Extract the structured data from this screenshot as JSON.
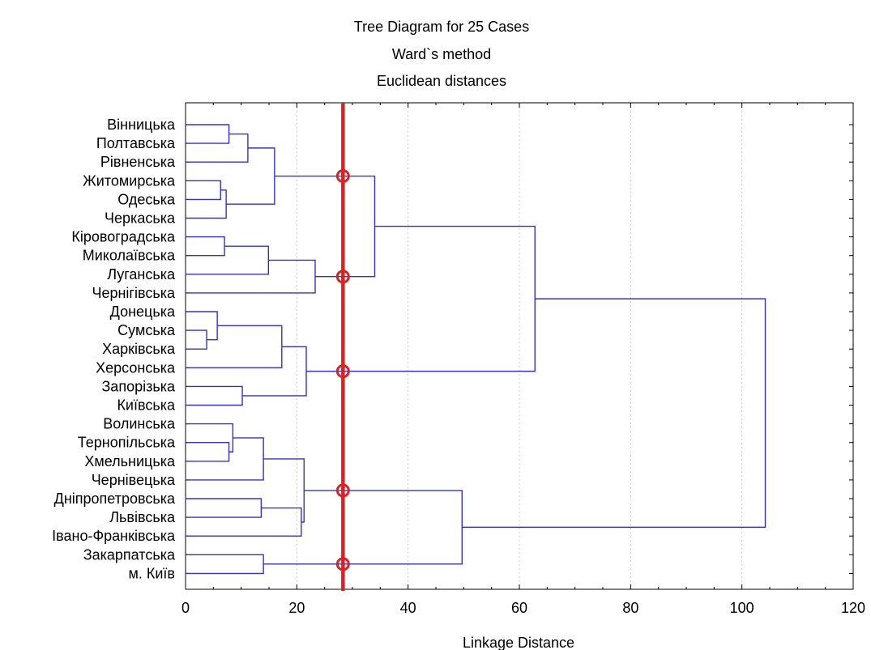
{
  "chart_data": {
    "type": "dendrogram",
    "title": [
      "Tree Diagram for 25 Cases",
      "Ward`s method",
      "Euclidean distances"
    ],
    "xlabel": "Linkage Distance",
    "xlim": [
      0,
      120
    ],
    "xticks": [
      0,
      20,
      40,
      60,
      80,
      100,
      120
    ],
    "grid": "vertical-dotted",
    "colors": {
      "branches": "#3333cc",
      "cut_line": "#e02020",
      "grid": "#c8c8c8"
    },
    "leaves": [
      "Вінницька",
      "Полтавська",
      "Рівненська",
      "Житомирська",
      "Одеська",
      "Черкаська",
      "Кіровоградська",
      "Миколаївська",
      "Луганська",
      "Чернігівська",
      "Донецька",
      "Сумська",
      "Харківська",
      "Херсонська",
      "Запорізька",
      "Київська",
      "Волинська",
      "Тернопільська",
      "Хмельницька",
      "Чернівецька",
      "Дніпропетровська",
      "Львівська",
      "Івано-Франківська",
      "Закарпатська",
      "м. Київ"
    ],
    "merges": [
      {
        "a": 0,
        "b": 1,
        "dist": 7.8
      },
      {
        "a": "m0",
        "b": 2,
        "dist": 11.2
      },
      {
        "a": 3,
        "b": 4,
        "dist": 6.3
      },
      {
        "a": "m2",
        "b": 5,
        "dist": 7.3
      },
      {
        "a": "m1",
        "b": "m3",
        "dist": 16.0
      },
      {
        "a": 6,
        "b": 7,
        "dist": 7.0
      },
      {
        "a": "m5",
        "b": 8,
        "dist": 14.9
      },
      {
        "a": "m6",
        "b": 9,
        "dist": 23.3
      },
      {
        "a": "m4",
        "b": "m7",
        "dist": 34.0
      },
      {
        "a": 11,
        "b": 12,
        "dist": 3.8
      },
      {
        "a": 10,
        "b": "m9",
        "dist": 5.7
      },
      {
        "a": "m10",
        "b": 13,
        "dist": 17.3
      },
      {
        "a": 14,
        "b": 15,
        "dist": 10.2
      },
      {
        "a": "m11",
        "b": "m12",
        "dist": 21.7
      },
      {
        "a": "m8",
        "b": "m13",
        "dist": 62.8
      },
      {
        "a": 17,
        "b": 18,
        "dist": 7.8
      },
      {
        "a": 16,
        "b": "m15",
        "dist": 8.5
      },
      {
        "a": "m16",
        "b": 19,
        "dist": 14.0
      },
      {
        "a": 20,
        "b": 21,
        "dist": 13.6
      },
      {
        "a": "m18",
        "b": 22,
        "dist": 20.8
      },
      {
        "a": "m17",
        "b": "m19",
        "dist": 21.3
      },
      {
        "a": 23,
        "b": 24,
        "dist": 14.0
      },
      {
        "a": "m20",
        "b": "m21",
        "dist": 49.7
      },
      {
        "a": "m14",
        "b": "m22",
        "dist": 104.2
      }
    ],
    "cut_line": 28.3
  }
}
